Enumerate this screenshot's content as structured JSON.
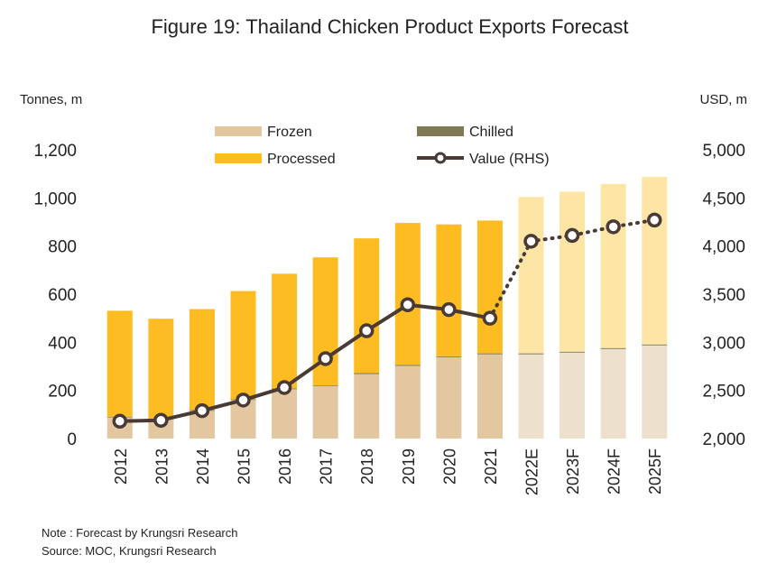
{
  "colors": {
    "frozen": "#e2c7a0",
    "frozen_forecast": "#ede0cc",
    "chilled": "#7f7a55",
    "processed": "#fdbd22",
    "processed_forecast": "#fde5a6",
    "value_line": "#4a3a36"
  },
  "notes": {
    "note": "Note : Forecast by Krungsri Research",
    "source": "Source: MOC, Krungsri Research"
  },
  "chart_data": {
    "type": "bar",
    "stacked": true,
    "title": "Figure 19: Thailand Chicken Product Exports Forecast",
    "ylabel": "Tonnes, m",
    "y2label": "USD, m",
    "ylim": [
      0,
      1200
    ],
    "yticks": [
      "0",
      "200",
      "400",
      "600",
      "800",
      "1,000",
      "1,200"
    ],
    "y2lim": [
      2000,
      5000
    ],
    "y2ticks": [
      "2,000",
      "2,500",
      "3,000",
      "3,500",
      "4,000",
      "4,500",
      "5,000"
    ],
    "categories": [
      "2012",
      "2013",
      "2014",
      "2015",
      "2016",
      "2017",
      "2018",
      "2019",
      "2020",
      "2021",
      "2022E",
      "2023F",
      "2024F",
      "2025F"
    ],
    "forecast_start_index": 10,
    "series": [
      {
        "name": "Frozen",
        "axis": "left",
        "values": [
          88,
          80,
          115,
          160,
          205,
          218,
          268,
          302,
          338,
          350,
          350,
          357,
          372,
          387
        ]
      },
      {
        "name": "Chilled",
        "axis": "left",
        "values": [
          3,
          3,
          3,
          3,
          3,
          3,
          4,
          4,
          4,
          4,
          4,
          4,
          4,
          4
        ]
      },
      {
        "name": "Processed",
        "axis": "left",
        "values": [
          440,
          415,
          420,
          450,
          477,
          532,
          560,
          590,
          548,
          552,
          650,
          665,
          682,
          696
        ]
      },
      {
        "name": "Value (RHS)",
        "axis": "right",
        "type": "line",
        "values": [
          2180,
          2190,
          2290,
          2400,
          2530,
          2830,
          3120,
          3390,
          3340,
          3250,
          4050,
          4110,
          4200,
          4270
        ]
      }
    ],
    "legend": [
      {
        "label": "Frozen",
        "kind": "swatch",
        "color_key": "frozen"
      },
      {
        "label": "Chilled",
        "kind": "swatch",
        "color_key": "chilled"
      },
      {
        "label": "Processed",
        "kind": "swatch",
        "color_key": "processed"
      },
      {
        "label": "Value (RHS)",
        "kind": "line-marker",
        "color_key": "value_line"
      }
    ],
    "legend_position": "top",
    "grid": false
  }
}
